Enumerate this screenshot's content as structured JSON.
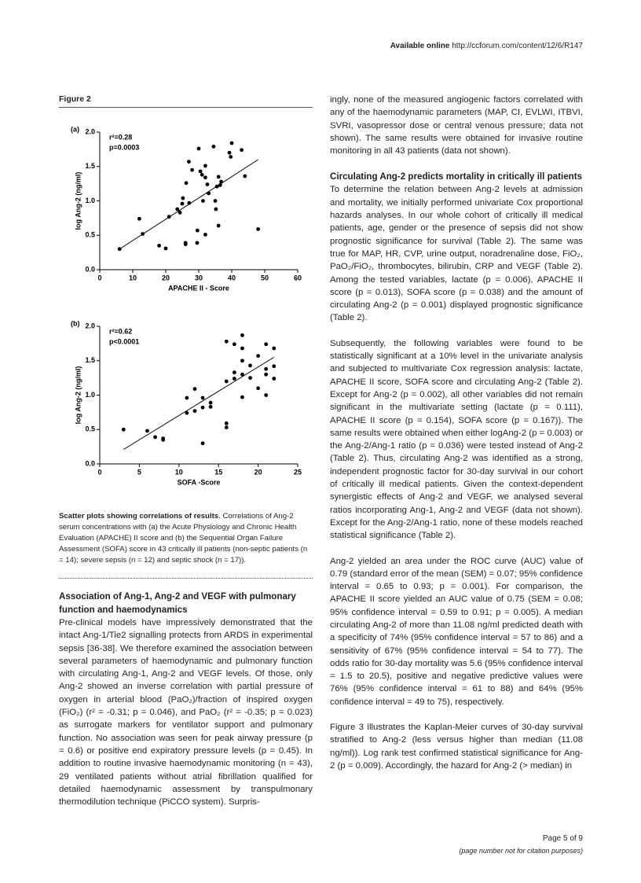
{
  "header": {
    "label": "Available online",
    "url": "http://ccforum.com/content/12/6/R147"
  },
  "figure": {
    "title": "Figure 2",
    "caption": {
      "title": "Scatter plots showing correlations of results",
      "text": ". Correlations of Ang-2 serum concentrations with (a) the Acute Physiology and Chronic Health Evaluation (APACHE) II score and (b) the Sequential Organ Failure Assessment (SOFA) score in 43 critically ill patients (non-septic patients (n = 14); severe sepsis (n = 12) and septic shock (n = 17))."
    }
  },
  "chart_data": [
    {
      "type": "scatter",
      "panel_label": "(a)",
      "annotations": [
        "r²=0.28",
        "p=0.0003"
      ],
      "x_label": "APACHE II - Score",
      "y_label": "log  Ang-2 (ng/ml)",
      "color": "#000000",
      "x": [
        6,
        12,
        13,
        18,
        20,
        21,
        23.5,
        24.3,
        25,
        25.2,
        26,
        26,
        26.2,
        27,
        27.1,
        28,
        29.5,
        29.6,
        30,
        30.5,
        31,
        31.3,
        32,
        32,
        32,
        32.6,
        33,
        34.5,
        35,
        35.2,
        35.5,
        36,
        36,
        36.5,
        39.3,
        40,
        39.7,
        43,
        44,
        48,
        36.8
      ],
      "y": [
        0.3,
        0.74,
        0.52,
        0.35,
        0.31,
        0.77,
        0.88,
        0.83,
        0.96,
        1.04,
        0.39,
        0.37,
        1.26,
        1.57,
        0.97,
        1.45,
        0.39,
        0.57,
        1.76,
        1.43,
        1.38,
        1.0,
        1.34,
        1.51,
        0.51,
        1.24,
        1.11,
        1.79,
        1.0,
        0.88,
        1.21,
        1.35,
        0.64,
        1.23,
        1.7,
        1.84,
        1.64,
        1.74,
        1.36,
        0.59,
        1.28
      ],
      "trendline": {
        "x": [
          6,
          48
        ],
        "y": [
          0.3,
          1.6
        ]
      },
      "xlim": [
        0,
        60
      ],
      "xticks": [
        0,
        10,
        20,
        30,
        40,
        50,
        60
      ],
      "ylim": [
        0,
        2
      ],
      "yticks": [
        {
          "value": 0,
          "label": "0.0"
        },
        0.5,
        {
          "value": 1,
          "label": "1.0"
        },
        1.5,
        {
          "value": 2,
          "label": "2.0"
        }
      ]
    },
    {
      "type": "scatter",
      "panel_label": "(b)",
      "annotations": [
        "r²=0.62",
        "p<0.0001"
      ],
      "x_label": "SOFA -Score",
      "y_label": "log  Ang-2 (ng/ml)",
      "color": "#000000",
      "x": [
        3,
        6,
        7,
        8,
        8,
        11,
        11,
        12,
        12,
        13,
        13,
        13,
        14,
        14,
        16,
        16,
        16,
        16,
        17,
        17,
        17,
        18,
        18,
        18,
        18,
        18,
        19,
        19,
        20,
        20,
        21,
        21,
        21,
        21,
        22,
        22,
        22
      ],
      "y": [
        0.5,
        0.48,
        0.39,
        0.37,
        0.35,
        0.74,
        0.96,
        0.77,
        1.09,
        0.82,
        0.96,
        0.3,
        0.89,
        0.83,
        0.59,
        0.53,
        1.78,
        1.2,
        1.74,
        1.24,
        1.33,
        1.87,
        1.68,
        1.5,
        0.97,
        1.3,
        1.43,
        1.25,
        1.57,
        1.1,
        1.74,
        1.0,
        1.38,
        1.3,
        1.68,
        1.42,
        1.24
      ],
      "trendline": {
        "x": [
          3,
          22
        ],
        "y": [
          0.21,
          1.55
        ]
      },
      "xlim": [
        0,
        25
      ],
      "xticks": [
        0,
        5,
        10,
        15,
        20,
        25
      ],
      "ylim": [
        0,
        2
      ],
      "yticks": [
        {
          "value": 0,
          "label": "0.0"
        },
        0.5,
        {
          "value": 1,
          "label": "1.0"
        },
        1.5,
        {
          "value": 2,
          "label": "2.0"
        }
      ]
    }
  ],
  "sections": [
    {
      "heading": "Association of Ang-1, Ang-2 and VEGF with pulmonary function and haemodynamics",
      "paragraphs": [
        "Pre-clinical models have impressively demonstrated that the intact Ang-1/Tie2 signalling protects from ARDS in experimental sepsis [36-38]. We therefore examined the association between several parameters of haemodynamic and pulmonary function with circulating Ang-1, Ang-2 and VEGF levels. Of those, only Ang-2 showed an inverse correlation with partial pressure of oxygen in arterial blood (PaO₂)/fraction of inspired oxygen (FiO₂) (r² = -0.31; p = 0.046), and PaO₂ (r² = -0.35; p = 0.023) as surrogate markers for ventilator support and pulmonary function. No association was seen for peak airway pressure (p = 0.6) or positive end expiratory pressure levels (p = 0.45). In addition to routine invasive haemodynamic monitoring (n = 43), 29 ventilated patients without atrial fibrillation qualified for detailed haemodynamic assessment by transpulmonary thermodilution technique (PiCCO system). Surpris-",
        "ingly, none of the measured angiogenic factors correlated with any of the haemodynamic parameters (MAP, CI, EVLWI, ITBVI, SVRI, vasopressor dose or central venous pressure; data not shown). The same results were obtained for invasive routine monitoring in all 43 patients (data not shown)."
      ]
    },
    {
      "heading": "Circulating Ang-2 predicts mortality in critically ill patients",
      "paragraphs": [
        "To determine the relation between Ang-2 levels at admission and mortality, we initially performed univariate Cox proportional hazards analyses. In our whole cohort of critically ill medical patients, age, gender or the presence of sepsis did not show prognostic significance for survival (Table 2). The same was true for MAP, HR, CVP, urine output, noradrenaline dose, FiO₂, PaO₂/FiO₂, thrombocytes, bilirubin, CRP and VEGF (Table 2). Among the tested variables, lactate (p = 0.006), APACHE II score (p = 0.013), SOFA score (p = 0.038) and the amount of circulating Ang-2 (p = 0.001) displayed prognostic significance (Table 2).",
        "Subsequently, the following variables were found to be statistically significant at a 10% level in the univariate analysis and subjected to multivariate Cox regression analysis: lactate, APACHE II score, SOFA score and circulating Ang-2 (Table 2). Except for Ang-2 (p = 0.002), all other variables did not remain significant in the multivariate setting (lactate (p = 0.111), APACHE II score (p = 0.154), SOFA score (p = 0.167)). The same results were obtained when either logAng-2 (p = 0.003) or the Ang-2/Ang-1 ratio (p = 0.036) were tested instead of Ang-2 (Table 2). Thus, circulating Ang-2 was identified as a strong, independent prognostic factor for 30-day survival in our cohort of critically ill medical patients. Given the context-dependent synergistic effects of Ang-2 and VEGF, we analysed several ratios incorporating Ang-1, Ang-2 and VEGF (data not shown). Except for the Ang-2/Ang-1 ratio, none of these models reached statistical significance (Table 2).",
        "Ang-2 yielded an area under the ROC curve (AUC) value of 0.79 (standard error of the mean (SEM) = 0.07; 95% confidence interval = 0.65 to 0.93; p = 0.001). For comparison, the APACHE II score yielded an AUC value of 0.75 (SEM = 0.08; 95% confidence interval = 0.59 to 0.91; p = 0.005). A median circulating Ang-2 of more than 11.08 ng/ml predicted death with a specificity of 74% (95% confidence interval = 57 to 86) and a sensitivity of 67% (95% confidence interval = 54 to 77). The odds ratio for 30-day mortality was 5.6 (95% confidence interval = 1.5 to 20.5), positive and negative predictive values were 76% (95% confidence interval = 61 to 88) and 64% (95% confidence interval = 49 to 75), respectively.",
        "Figure 3 illustrates the Kaplan-Meier curves of 30-day survival stratified to Ang-2 (less versus higher than median (11.08 ng/ml)). Log rank test confirmed statistical significance for Ang-2 (p = 0.009). Accordingly, the hazard for Ang-2 (> median) in"
      ]
    }
  ],
  "footer": {
    "page": "Page 5 of 9",
    "note": "(page number not for citation purposes)"
  }
}
